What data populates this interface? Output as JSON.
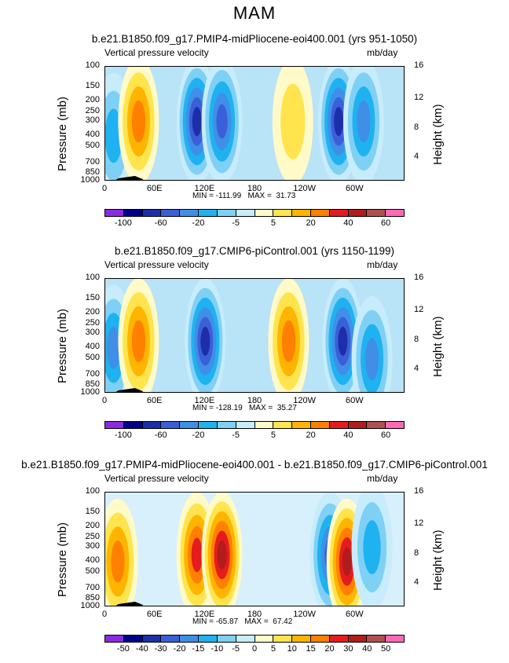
{
  "main_title": "MAM",
  "chart_data": [
    {
      "type": "heatmap",
      "title": "b.e21.B1850.f09_g17.PMIP4-midPliocene-eoi400.001 (yrs 951-1050)",
      "subtitle_left": "Vertical pressure velocity",
      "subtitle_right": "mb/day",
      "ylabel": "Pressure  (mb)",
      "ylabel_right": "Height  (km)",
      "yticks": [
        "100",
        "150",
        "200",
        "250",
        "300",
        "400",
        "500",
        "700",
        "850",
        "1000"
      ],
      "yticks_right": [
        "16",
        "12",
        "8",
        "4"
      ],
      "xticks": [
        "0",
        "60E",
        "120E",
        "180",
        "120W",
        "60W"
      ],
      "min_max": "MIN = -111.99   MAX =  31.73",
      "colorbar_labels": [
        "-100",
        "-60",
        "-20",
        "-5",
        "5",
        "20",
        "40",
        "60"
      ],
      "colorbar_colors": [
        "#8a2be2",
        "#00008b",
        "#1c2fa8",
        "#3a5fd8",
        "#3f8fe6",
        "#1fb2f0",
        "#7fd0f5",
        "#c7ecfb",
        "#fffac8",
        "#ffe44d",
        "#ffb400",
        "#ff8000",
        "#e61c1c",
        "#b21c1c",
        "#b05050",
        "#ff69b4"
      ],
      "features": [
        {
          "lon": 10,
          "p": 400,
          "kind": "neg",
          "strength": 2
        },
        {
          "lon": 40,
          "p": 300,
          "kind": "pos",
          "strength": 3
        },
        {
          "lon": 110,
          "p": 300,
          "kind": "neg",
          "strength": 5
        },
        {
          "lon": 140,
          "p": 300,
          "kind": "neg",
          "strength": 4
        },
        {
          "lon": 225,
          "p": 300,
          "kind": "pos",
          "strength": 1
        },
        {
          "lon": 280,
          "p": 300,
          "kind": "neg",
          "strength": 5
        },
        {
          "lon": 310,
          "p": 300,
          "kind": "neg",
          "strength": 3
        }
      ]
    },
    {
      "type": "heatmap",
      "title": "b.e21.B1850.f09_g17.CMIP6-piControl.001 (yrs 1150-1199)",
      "subtitle_left": "Vertical pressure velocity",
      "subtitle_right": "mb/day",
      "ylabel": "Pressure  (mb)",
      "ylabel_right": "Height  (km)",
      "yticks": [
        "100",
        "150",
        "200",
        "250",
        "300",
        "400",
        "500",
        "700",
        "850",
        "1000"
      ],
      "yticks_right": [
        "16",
        "12",
        "8",
        "4"
      ],
      "xticks": [
        "0",
        "60E",
        "120E",
        "180",
        "120W",
        "60W"
      ],
      "min_max": "MIN = -128.19   MAX =  35.27",
      "colorbar_labels": [
        "-100",
        "-60",
        "-20",
        "-5",
        "5",
        "20",
        "40",
        "60"
      ],
      "colorbar_colors": [
        "#8a2be2",
        "#00008b",
        "#1c2fa8",
        "#3a5fd8",
        "#3f8fe6",
        "#1fb2f0",
        "#7fd0f5",
        "#c7ecfb",
        "#fffac8",
        "#ffe44d",
        "#ffb400",
        "#ff8000",
        "#e61c1c",
        "#b21c1c",
        "#b05050",
        "#ff69b4"
      ],
      "features": [
        {
          "lon": 10,
          "p": 400,
          "kind": "neg",
          "strength": 3
        },
        {
          "lon": 40,
          "p": 350,
          "kind": "pos",
          "strength": 3
        },
        {
          "lon": 120,
          "p": 350,
          "kind": "neg",
          "strength": 5
        },
        {
          "lon": 220,
          "p": 350,
          "kind": "pos",
          "strength": 3
        },
        {
          "lon": 285,
          "p": 350,
          "kind": "neg",
          "strength": 5
        },
        {
          "lon": 320,
          "p": 500,
          "kind": "neg",
          "strength": 3
        }
      ]
    },
    {
      "type": "heatmap",
      "title": "b.e21.B1850.f09_g17.PMIP4-midPliocene-eoi400.001 - b.e21.B1850.f09_g17.CMIP6-piControl.001",
      "subtitle_left": "Vertical pressure velocity",
      "subtitle_right": "mb/day",
      "ylabel": "Pressure  (mb)",
      "ylabel_right": "Height  (km)",
      "yticks": [
        "100",
        "150",
        "200",
        "250",
        "300",
        "400",
        "500",
        "700",
        "850",
        "1000"
      ],
      "yticks_right": [
        "16",
        "12",
        "8",
        "4"
      ],
      "xticks": [
        "0",
        "60E",
        "120E",
        "180",
        "120W",
        "60W"
      ],
      "min_max": "MIN = -65.87   MAX =  67.42",
      "colorbar_labels": [
        "-50",
        "-40",
        "-30",
        "-20",
        "-15",
        "-10",
        "-5",
        "0",
        "5",
        "10",
        "15",
        "20",
        "30",
        "40",
        "50"
      ],
      "colorbar_colors": [
        "#8a2be2",
        "#00008b",
        "#1c2fa8",
        "#3a5fd8",
        "#3f8fe6",
        "#1fb2f0",
        "#7fd0f5",
        "#c7ecfb",
        "#fffac8",
        "#ffe44d",
        "#ffb400",
        "#ff8000",
        "#e61c1c",
        "#b21c1c",
        "#b05050",
        "#ff69b4"
      ],
      "features": [
        {
          "lon": 15,
          "p": 400,
          "kind": "pos",
          "strength": 3
        },
        {
          "lon": 110,
          "p": 350,
          "kind": "pos",
          "strength": 4
        },
        {
          "lon": 140,
          "p": 350,
          "kind": "pos",
          "strength": 5
        },
        {
          "lon": 270,
          "p": 350,
          "kind": "neg",
          "strength": 4
        },
        {
          "lon": 290,
          "p": 400,
          "kind": "pos",
          "strength": 5
        },
        {
          "lon": 320,
          "p": 300,
          "kind": "neg",
          "strength": 2
        }
      ]
    }
  ]
}
